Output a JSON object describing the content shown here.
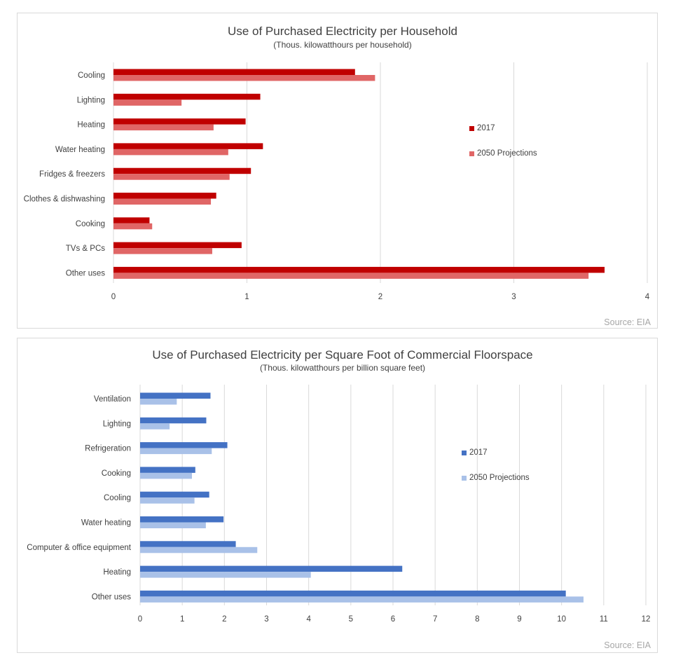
{
  "chart_data": [
    {
      "type": "bar",
      "orientation": "horizontal",
      "title": "Use of Purchased Electricity per Household",
      "subtitle": "(Thous. kilowatthours per household)",
      "categories": [
        "Cooling",
        "Lighting",
        "Heating",
        "Water heating",
        "Fridges & freezers",
        "Clothes & dishwashing",
        "Cooking",
        "TVs & PCs",
        "Other uses"
      ],
      "series": [
        {
          "name": "2017",
          "color": "#C00000",
          "values": [
            1.81,
            1.1,
            0.99,
            1.12,
            1.03,
            0.77,
            0.27,
            0.96,
            3.68
          ]
        },
        {
          "name": "2050 Projections",
          "color": "#E06666",
          "values": [
            1.96,
            0.51,
            0.75,
            0.86,
            0.87,
            0.73,
            0.29,
            0.74,
            3.56
          ]
        }
      ],
      "xlim": [
        0,
        4
      ],
      "xticks": [
        0,
        1,
        2,
        3,
        4
      ],
      "grid": true,
      "legend_position": "right",
      "source": "Source: EIA"
    },
    {
      "type": "bar",
      "orientation": "horizontal",
      "title": "Use of Purchased Electricity per Square Foot of Commercial Floorspace",
      "subtitle": "(Thous. kilowatthours per billion square feet)",
      "categories": [
        "Ventilation",
        "Lighting",
        "Refrigeration",
        "Cooking",
        "Cooling",
        "Water heating",
        "Computer & office equipment",
        "Heating",
        "Other uses"
      ],
      "series": [
        {
          "name": "2017",
          "color": "#4472C4",
          "values": [
            1.67,
            1.57,
            2.07,
            1.31,
            1.64,
            1.98,
            2.27,
            6.22,
            10.1
          ]
        },
        {
          "name": "2050 Projections",
          "color": "#A9C1E8",
          "values": [
            0.87,
            0.7,
            1.7,
            1.23,
            1.29,
            1.56,
            2.78,
            4.05,
            10.52
          ]
        }
      ],
      "xlim": [
        0,
        12
      ],
      "xticks": [
        0,
        1,
        2,
        3,
        4,
        5,
        6,
        7,
        8,
        9,
        10,
        11,
        12
      ],
      "grid": true,
      "legend_position": "right",
      "source": "Source: EIA"
    }
  ]
}
